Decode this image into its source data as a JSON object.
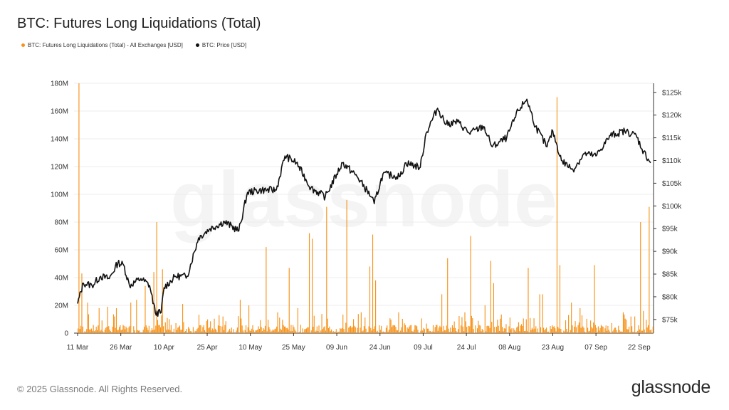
{
  "header": {
    "title": "BTC: Futures Long Liquidations (Total)"
  },
  "legend": [
    {
      "label": "BTC: Futures Long Liquidations (Total) - All Exchanges [USD]",
      "color": "#f7931a"
    },
    {
      "label": "BTC: Price [USD]",
      "color": "#111111"
    }
  ],
  "watermark": "glassnode",
  "footer": {
    "copyright": "© 2025 Glassnode. All Rights Reserved.",
    "brand": "glassnode"
  },
  "chart_data": {
    "type": "bar",
    "x_tick_labels": [
      "11 Mar",
      "26 Mar",
      "10 Apr",
      "25 Apr",
      "10 May",
      "25 May",
      "09 Jun",
      "24 Jun",
      "09 Jul",
      "24 Jul",
      "08 Aug",
      "23 Aug",
      "07 Sep",
      "22 Sep"
    ],
    "x_range": [
      "2025-03-11",
      "2025-09-26"
    ],
    "y_left_ticks": [
      "0",
      "20M",
      "40M",
      "60M",
      "80M",
      "100M",
      "120M",
      "140M",
      "160M",
      "180M"
    ],
    "y_left_range": [
      0,
      180000000
    ],
    "y_right_ticks": [
      "$75k",
      "$80k",
      "$85k",
      "$90k",
      "$95k",
      "$100k",
      "$105k",
      "$110k",
      "$115k",
      "$120k",
      "$125k"
    ],
    "y_right_range": [
      72000,
      127000
    ],
    "grid": "horizontal",
    "legend_position": "top-left",
    "series": [
      {
        "name": "BTC: Futures Long Liquidations (Total) - All Exchanges [USD]",
        "type": "bar",
        "color": "#f7931a",
        "axis": "left",
        "spikes": [
          {
            "date": "2025-03-11",
            "value": 180000000
          },
          {
            "date": "2025-03-12",
            "value": 43000000
          },
          {
            "date": "2025-03-14",
            "value": 22000000
          },
          {
            "date": "2025-03-18",
            "value": 18000000
          },
          {
            "date": "2025-03-21",
            "value": 19000000
          },
          {
            "date": "2025-03-24",
            "value": 18000000
          },
          {
            "date": "2025-03-29",
            "value": 22000000
          },
          {
            "date": "2025-03-31",
            "value": 24000000
          },
          {
            "date": "2025-04-03",
            "value": 34000000
          },
          {
            "date": "2025-04-06",
            "value": 44000000
          },
          {
            "date": "2025-04-07",
            "value": 80000000
          },
          {
            "date": "2025-04-09",
            "value": 46000000
          },
          {
            "date": "2025-04-16",
            "value": 21000000
          },
          {
            "date": "2025-04-30",
            "value": 12000000
          },
          {
            "date": "2025-05-06",
            "value": 24000000
          },
          {
            "date": "2025-05-09",
            "value": 20000000
          },
          {
            "date": "2025-05-15",
            "value": 62000000
          },
          {
            "date": "2025-05-19",
            "value": 15000000
          },
          {
            "date": "2025-05-23",
            "value": 47000000
          },
          {
            "date": "2025-05-26",
            "value": 18000000
          },
          {
            "date": "2025-05-30",
            "value": 72000000
          },
          {
            "date": "2025-05-31",
            "value": 68000000
          },
          {
            "date": "2025-06-05",
            "value": 91000000
          },
          {
            "date": "2025-06-12",
            "value": 96000000
          },
          {
            "date": "2025-06-17",
            "value": 15000000
          },
          {
            "date": "2025-06-20",
            "value": 48000000
          },
          {
            "date": "2025-06-21",
            "value": 71000000
          },
          {
            "date": "2025-06-22",
            "value": 38000000
          },
          {
            "date": "2025-06-30",
            "value": 15000000
          },
          {
            "date": "2025-07-15",
            "value": 28000000
          },
          {
            "date": "2025-07-17",
            "value": 54000000
          },
          {
            "date": "2025-07-23",
            "value": 15000000
          },
          {
            "date": "2025-07-25",
            "value": 70000000
          },
          {
            "date": "2025-07-30",
            "value": 20000000
          },
          {
            "date": "2025-08-01",
            "value": 52000000
          },
          {
            "date": "2025-08-02",
            "value": 36000000
          },
          {
            "date": "2025-08-14",
            "value": 47000000
          },
          {
            "date": "2025-08-18",
            "value": 28000000
          },
          {
            "date": "2025-08-19",
            "value": 28000000
          },
          {
            "date": "2025-08-24",
            "value": 170000000
          },
          {
            "date": "2025-08-25",
            "value": 49000000
          },
          {
            "date": "2025-08-29",
            "value": 22000000
          },
          {
            "date": "2025-09-01",
            "value": 18000000
          },
          {
            "date": "2025-09-06",
            "value": 49000000
          },
          {
            "date": "2025-09-16",
            "value": 15000000
          },
          {
            "date": "2025-09-20",
            "value": 12000000
          },
          {
            "date": "2025-09-22",
            "value": 80000000
          },
          {
            "date": "2025-09-23",
            "value": 16000000
          },
          {
            "date": "2025-09-25",
            "value": 91000000
          }
        ]
      },
      {
        "name": "BTC: Price [USD]",
        "type": "line",
        "color": "#111111",
        "axis": "right",
        "points": [
          {
            "date": "2025-03-11",
            "value": 78500
          },
          {
            "date": "2025-03-13",
            "value": 83000
          },
          {
            "date": "2025-03-16",
            "value": 82500
          },
          {
            "date": "2025-03-19",
            "value": 84500
          },
          {
            "date": "2025-03-22",
            "value": 84000
          },
          {
            "date": "2025-03-25",
            "value": 87500
          },
          {
            "date": "2025-03-27",
            "value": 87000
          },
          {
            "date": "2025-03-29",
            "value": 82500
          },
          {
            "date": "2025-04-02",
            "value": 84000
          },
          {
            "date": "2025-04-05",
            "value": 82500
          },
          {
            "date": "2025-04-07",
            "value": 76500
          },
          {
            "date": "2025-04-09",
            "value": 76500
          },
          {
            "date": "2025-04-10",
            "value": 82000
          },
          {
            "date": "2025-04-14",
            "value": 84500
          },
          {
            "date": "2025-04-18",
            "value": 84500
          },
          {
            "date": "2025-04-22",
            "value": 93000
          },
          {
            "date": "2025-04-26",
            "value": 95000
          },
          {
            "date": "2025-05-01",
            "value": 96500
          },
          {
            "date": "2025-05-06",
            "value": 94500
          },
          {
            "date": "2025-05-09",
            "value": 103000
          },
          {
            "date": "2025-05-14",
            "value": 103500
          },
          {
            "date": "2025-05-19",
            "value": 103500
          },
          {
            "date": "2025-05-22",
            "value": 111000
          },
          {
            "date": "2025-05-26",
            "value": 109500
          },
          {
            "date": "2025-05-31",
            "value": 104000
          },
          {
            "date": "2025-06-05",
            "value": 102000
          },
          {
            "date": "2025-06-09",
            "value": 107000
          },
          {
            "date": "2025-06-11",
            "value": 109500
          },
          {
            "date": "2025-06-16",
            "value": 106500
          },
          {
            "date": "2025-06-21",
            "value": 102000
          },
          {
            "date": "2025-06-22",
            "value": 100500
          },
          {
            "date": "2025-06-25",
            "value": 107000
          },
          {
            "date": "2025-07-01",
            "value": 106500
          },
          {
            "date": "2025-07-03",
            "value": 109500
          },
          {
            "date": "2025-07-08",
            "value": 108500
          },
          {
            "date": "2025-07-10",
            "value": 116000
          },
          {
            "date": "2025-07-14",
            "value": 121500
          },
          {
            "date": "2025-07-17",
            "value": 118000
          },
          {
            "date": "2025-07-21",
            "value": 118500
          },
          {
            "date": "2025-07-25",
            "value": 116000
          },
          {
            "date": "2025-07-30",
            "value": 117500
          },
          {
            "date": "2025-08-02",
            "value": 113000
          },
          {
            "date": "2025-08-07",
            "value": 115000
          },
          {
            "date": "2025-08-11",
            "value": 121000
          },
          {
            "date": "2025-08-14",
            "value": 123500
          },
          {
            "date": "2025-08-17",
            "value": 117500
          },
          {
            "date": "2025-08-21",
            "value": 113000
          },
          {
            "date": "2025-08-23",
            "value": 116500
          },
          {
            "date": "2025-08-26",
            "value": 110000
          },
          {
            "date": "2025-08-30",
            "value": 108000
          },
          {
            "date": "2025-09-03",
            "value": 111500
          },
          {
            "date": "2025-09-07",
            "value": 111000
          },
          {
            "date": "2025-09-12",
            "value": 115500
          },
          {
            "date": "2025-09-17",
            "value": 116500
          },
          {
            "date": "2025-09-21",
            "value": 115500
          },
          {
            "date": "2025-09-23",
            "value": 112500
          },
          {
            "date": "2025-09-26",
            "value": 109500
          }
        ]
      }
    ]
  }
}
